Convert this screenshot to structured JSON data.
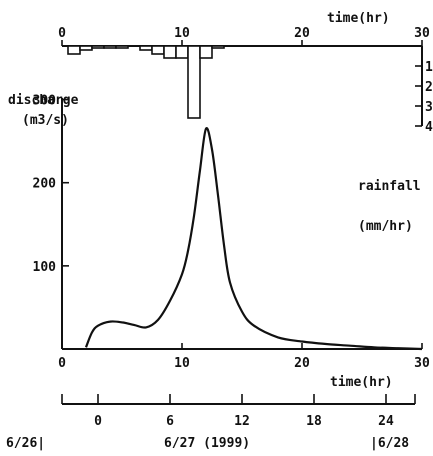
{
  "chart_data": [
    {
      "type": "bar",
      "role": "hyetograph (inverted, top)",
      "xlabel": "time(hr)",
      "ylabel": "rainfall (mm/hr)",
      "ylabel_lines": [
        "rainfall",
        "(mm/hr)"
      ],
      "xlim": [
        0,
        30
      ],
      "ylim": [
        0,
        40
      ],
      "x_ticks": [
        0,
        10,
        20,
        30
      ],
      "y_ticks": [
        10,
        20,
        30,
        40
      ],
      "y_tick_labels": [
        "1",
        "2",
        "3",
        "4"
      ],
      "bar_width_hr": 1,
      "bars": [
        {
          "t": 1,
          "value": 4
        },
        {
          "t": 2,
          "value": 2
        },
        {
          "t": 3,
          "value": 1
        },
        {
          "t": 4,
          "value": 1
        },
        {
          "t": 5,
          "value": 1
        },
        {
          "t": 6,
          "value": 0
        },
        {
          "t": 7,
          "value": 2
        },
        {
          "t": 8,
          "value": 4
        },
        {
          "t": 9,
          "value": 6
        },
        {
          "t": 10,
          "value": 6
        },
        {
          "t": 11,
          "value": 36
        },
        {
          "t": 12,
          "value": 6
        },
        {
          "t": 13,
          "value": 1
        }
      ]
    },
    {
      "type": "line",
      "role": "hydrograph (bottom)",
      "xlabel": "time(hr)",
      "ylabel": "discharge (m3/s)",
      "ylabel_lines": [
        "discharge",
        "(m3/s)"
      ],
      "xlim": [
        0,
        30
      ],
      "ylim": [
        0,
        350
      ],
      "x_ticks": [
        0,
        10,
        20,
        30
      ],
      "y_ticks": [
        100,
        200,
        300
      ],
      "series": [
        {
          "x": [
            2,
            2.5,
            3,
            4,
            5,
            6,
            7,
            8,
            9,
            10,
            10.5,
            11,
            11.5,
            12,
            12.5,
            13,
            13.5,
            14,
            15,
            16,
            18,
            20,
            22,
            24,
            26,
            28,
            30
          ],
          "y": [
            2,
            20,
            28,
            33,
            32,
            29,
            26,
            35,
            58,
            90,
            118,
            160,
            215,
            265,
            240,
            185,
            125,
            80,
            45,
            28,
            14,
            9,
            6,
            4,
            2,
            1,
            0
          ]
        }
      ]
    },
    {
      "type": "line",
      "role": "calendar time axis",
      "xlabel": "time(hr)",
      "ticks": [
        -6,
        0,
        6,
        12,
        18,
        24
      ],
      "tick_labels": [
        "",
        "0",
        "6",
        "12",
        "18",
        "24"
      ],
      "date_labels": {
        "left": "6/26|",
        "center": "6/27 (1999)",
        "right": "|6/28"
      }
    }
  ]
}
